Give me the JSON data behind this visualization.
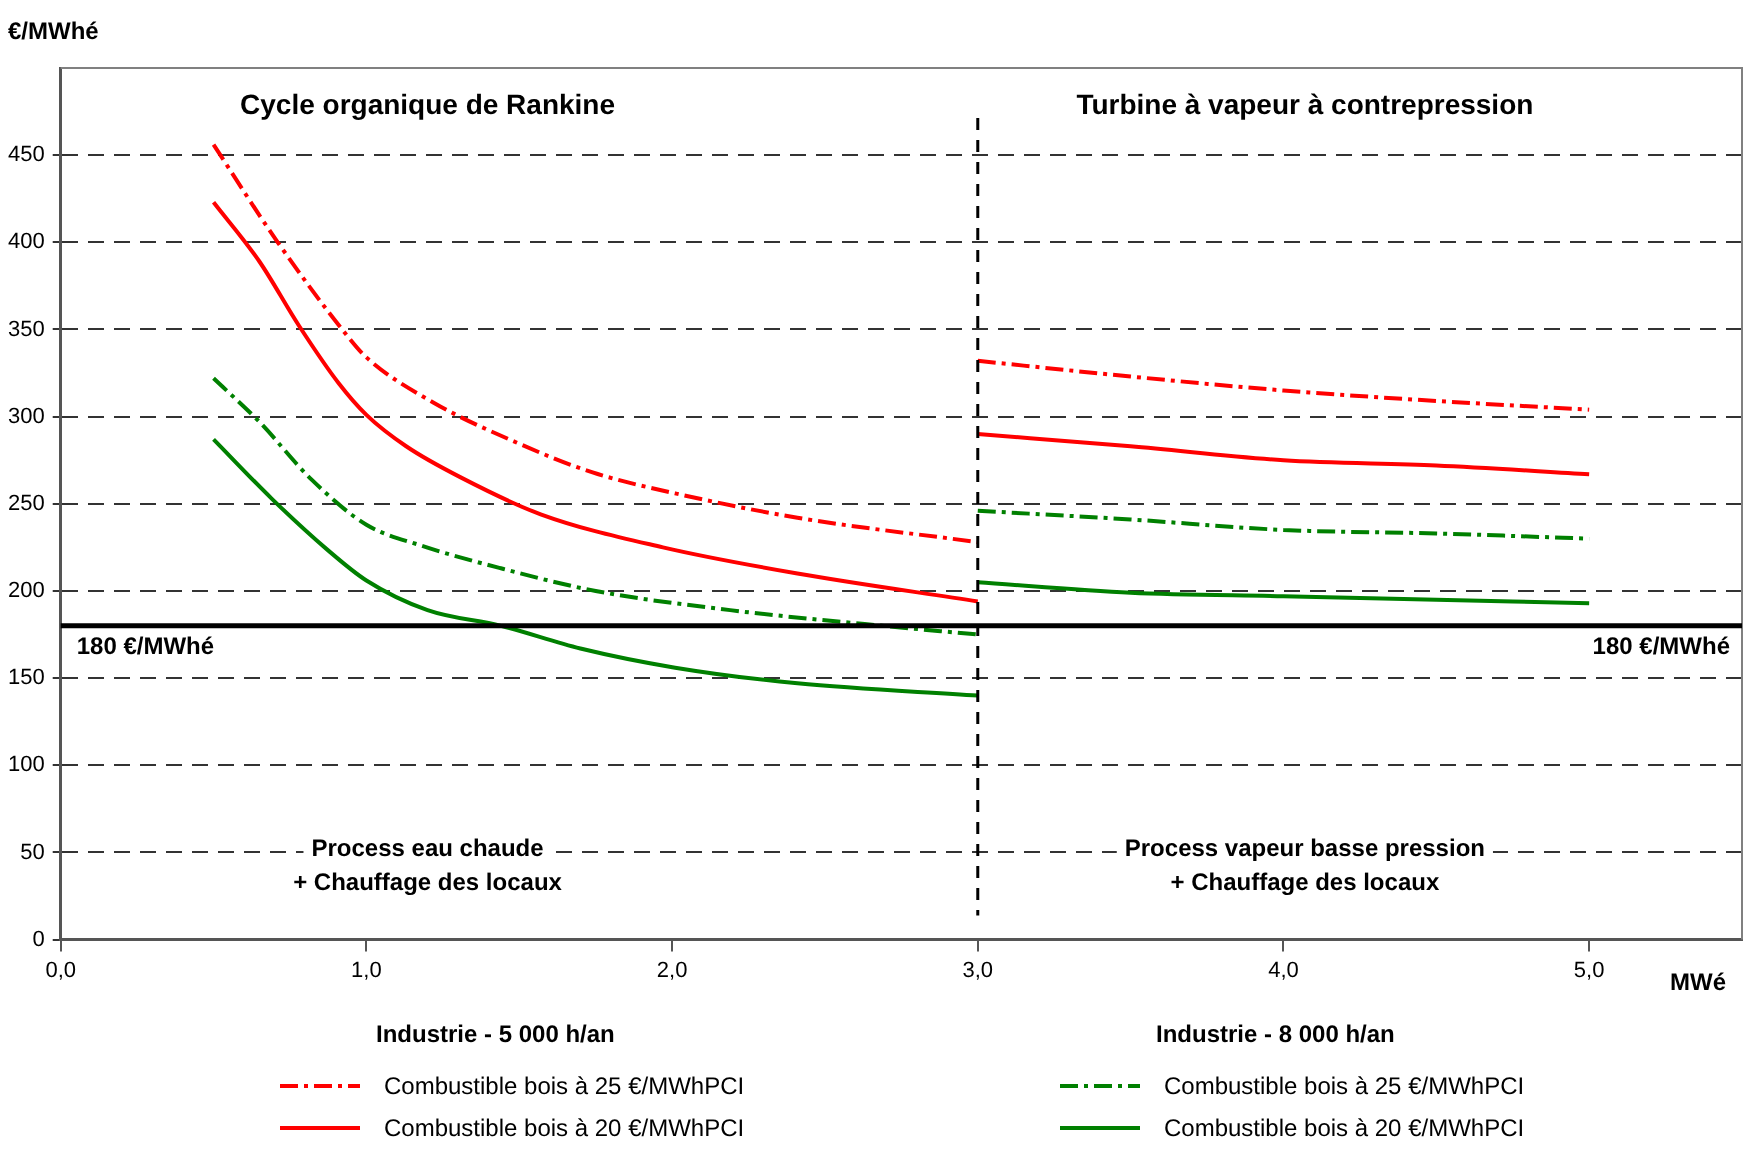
{
  "chart_data": {
    "type": "line",
    "ylabel": "€/MWhé",
    "xlabel": "MWé",
    "xlim": [
      0,
      5.5
    ],
    "ylim": [
      0,
      500
    ],
    "xticks": [
      {
        "value": 0,
        "label": "0,0"
      },
      {
        "value": 1,
        "label": "1,0"
      },
      {
        "value": 2,
        "label": "2,0"
      },
      {
        "value": 3,
        "label": "3,0"
      },
      {
        "value": 4,
        "label": "4,0"
      },
      {
        "value": 5,
        "label": "5,0"
      }
    ],
    "yticks": [
      0,
      50,
      100,
      150,
      200,
      250,
      300,
      350,
      400,
      450
    ],
    "grid": "y",
    "legend": "bottom",
    "marker": "none",
    "series": [
      {
        "name": "Combustible bois à 25 €/MWhPCI",
        "color": "#ff0000",
        "line_style": "dashed",
        "x": [
          0.5,
          0.71,
          0.93,
          1.0,
          1.22,
          1.48,
          1.74,
          2.01,
          2.41,
          3.0
        ],
        "values": [
          456,
          400,
          348,
          334,
          308,
          286,
          268,
          256,
          242,
          228
        ]
      },
      {
        "name": "Combustible bois à 20 €/MWhPCI",
        "color": "#ff0000",
        "line_style": "solid",
        "x": [
          0.5,
          0.65,
          0.78,
          0.91,
          1.0,
          1.13,
          1.31,
          1.57,
          1.97,
          2.41,
          3.0
        ],
        "values": [
          423,
          389,
          352,
          319,
          301,
          283,
          265,
          244,
          225,
          210,
          194
        ]
      },
      {
        "name": "Combustible bois à 25 €/MWhPCI",
        "color": "#008000",
        "line_style": "dashed",
        "x": [
          0.5,
          0.65,
          0.82,
          1.0,
          1.18,
          1.44,
          1.75,
          2.19,
          2.63,
          3.0
        ],
        "values": [
          322,
          297,
          264,
          238,
          226,
          213,
          200,
          189,
          181,
          175
        ]
      },
      {
        "name": "Combustible bois à 20 €/MWhPCI",
        "color": "#008000",
        "line_style": "solid",
        "x": [
          0.5,
          0.69,
          0.87,
          1.0,
          1.2,
          1.44,
          1.7,
          2.01,
          2.41,
          3.0
        ],
        "values": [
          287,
          253,
          224,
          206,
          189,
          180,
          167,
          156,
          147,
          140
        ]
      },
      {
        "color": "#ff0000",
        "line_style": "dashed",
        "x": [
          3.0,
          3.5,
          4.0,
          4.5,
          5.0
        ],
        "values": [
          332,
          323,
          315,
          309,
          304
        ]
      },
      {
        "color": "#ff0000",
        "line_style": "solid",
        "x": [
          3.0,
          3.5,
          4.0,
          4.5,
          5.0
        ],
        "values": [
          290,
          283,
          275,
          272,
          267
        ]
      },
      {
        "color": "#008000",
        "line_style": "dashed",
        "x": [
          3.0,
          3.5,
          4.0,
          4.5,
          5.0
        ],
        "values": [
          246,
          241,
          235,
          233,
          230
        ]
      },
      {
        "color": "#008000",
        "line_style": "solid",
        "x": [
          3.0,
          3.5,
          4.0,
          4.5,
          5.0
        ],
        "values": [
          205,
          199,
          197,
          195,
          193
        ]
      }
    ],
    "ref_lines": [
      {
        "axis": "y",
        "value": 180,
        "label": "180 €/MWhé",
        "color": "#000000",
        "line_style": "solid"
      },
      {
        "axis": "x",
        "value": 3,
        "color": "#000000",
        "line_style": "dashed"
      }
    ],
    "annotations": [
      "Cycle organique de Rankine",
      "Turbine à vapeur à contrepression",
      "Process eau chaude\n+ Chauffage des locaux",
      "Process vapeur basse pression\n+ Chauffage des locaux",
      "Industrie - 5 000 h/an",
      "Industrie - 8 000 h/an"
    ]
  }
}
